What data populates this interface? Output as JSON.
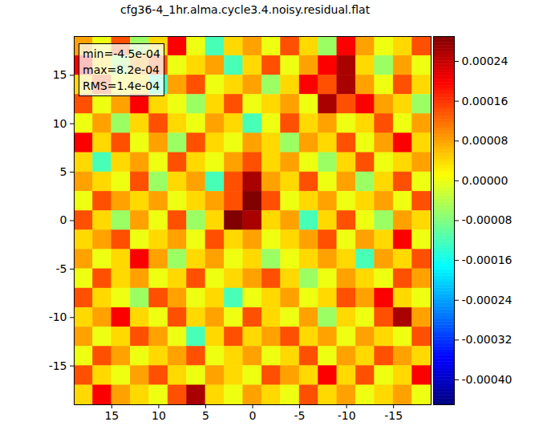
{
  "chart_data": {
    "type": "heatmap",
    "title": "cfg36-4_1hr.alma.cycle3.4.noisy.residual.flat",
    "annotations": [
      "min=-4.5e-04",
      "max=8.2e-04",
      "RMS=1.4e-04"
    ],
    "x": [
      18,
      16,
      14,
      12,
      10,
      8,
      6,
      4,
      2,
      0,
      -2,
      -4,
      -6,
      -8,
      -10,
      -12,
      -14,
      -16,
      -18
    ],
    "y": [
      18,
      16,
      14,
      12,
      10,
      8,
      6,
      4,
      2,
      0,
      -2,
      -4,
      -6,
      -8,
      -10,
      -12,
      -14,
      -16,
      -18
    ],
    "cells": [
      [
        8e-05,
        0,
        0.00014,
        -6e-05,
        4e-05,
        0.0002,
        0,
        -0.00012,
        4e-05,
        8e-05,
        0,
        0.00014,
        4e-05,
        -6e-05,
        0.0002,
        8e-05,
        0,
        4e-05,
        0.00014
      ],
      [
        0.0002,
        4e-05,
        -6e-05,
        8e-05,
        0.00014,
        0,
        4e-05,
        8e-05,
        -0.00012,
        4e-05,
        0.00014,
        0,
        8e-05,
        0.0002,
        0.00026,
        4e-05,
        -6e-05,
        8e-05,
        0
      ],
      [
        4e-05,
        0.00014,
        0,
        4e-05,
        -0.00012,
        8e-05,
        0.00014,
        0,
        4e-05,
        8e-05,
        -6e-05,
        4e-05,
        0.0002,
        0.00014,
        0.00026,
        8e-05,
        0,
        0.00014,
        4e-05
      ],
      [
        0.00014,
        0,
        8e-05,
        0.0002,
        4e-05,
        0,
        -6e-05,
        4e-05,
        0.00014,
        0,
        4e-05,
        8e-05,
        0,
        0.00026,
        0.00014,
        0.0002,
        8e-05,
        4e-05,
        -6e-05
      ],
      [
        0,
        8e-05,
        -6e-05,
        4e-05,
        0.00014,
        4e-05,
        0,
        8e-05,
        4e-05,
        -0.00012,
        0,
        0.00014,
        4e-05,
        8e-05,
        0,
        4e-05,
        0.00014,
        0,
        8e-05
      ],
      [
        0.0002,
        4e-05,
        0.00014,
        0,
        8e-05,
        -6e-05,
        0.00014,
        4e-05,
        0,
        8e-05,
        4e-05,
        -6e-05,
        8e-05,
        4e-05,
        0.00014,
        0,
        8e-05,
        0.0002,
        4e-05
      ],
      [
        4e-05,
        -0.00012,
        4e-05,
        8e-05,
        0,
        0.00014,
        4e-05,
        0,
        8e-05,
        0.00014,
        4e-05,
        8e-05,
        0,
        -6e-05,
        4e-05,
        0.00014,
        0,
        4e-05,
        8e-05
      ],
      [
        8e-05,
        4e-05,
        0,
        0.00014,
        -6e-05,
        4e-05,
        8e-05,
        -0.00012,
        0.00014,
        0.00026,
        8e-05,
        4e-05,
        0.00014,
        0,
        8e-05,
        -6e-05,
        4e-05,
        0.00014,
        0
      ],
      [
        0,
        0.00014,
        8e-05,
        4e-05,
        8e-05,
        0,
        4e-05,
        8e-05,
        0.00014,
        0.0003,
        0.00014,
        0,
        4e-05,
        8e-05,
        0,
        4e-05,
        8e-05,
        0,
        0.00014
      ],
      [
        0.00014,
        4e-05,
        -6e-05,
        8e-05,
        0,
        0.00014,
        -6e-05,
        4e-05,
        0.0003,
        0.00026,
        4e-05,
        8e-05,
        -0.00012,
        4e-05,
        0.00014,
        0,
        -6e-05,
        8e-05,
        4e-05
      ],
      [
        4e-05,
        8e-05,
        0.00014,
        0,
        4e-05,
        8e-05,
        0,
        0.00014,
        4e-05,
        8e-05,
        0,
        4e-05,
        8e-05,
        0.00014,
        0,
        8e-05,
        4e-05,
        0.0002,
        0
      ],
      [
        8e-05,
        0,
        4e-05,
        0.0002,
        8e-05,
        -6e-05,
        4e-05,
        8e-05,
        0,
        4e-05,
        -6e-05,
        0,
        4e-05,
        8e-05,
        4e-05,
        -0.00012,
        8e-05,
        4e-05,
        0.00014
      ],
      [
        0,
        0.00014,
        4e-05,
        8e-05,
        0,
        4e-05,
        0.00014,
        0,
        4e-05,
        8e-05,
        0.00014,
        4e-05,
        -6e-05,
        0,
        8e-05,
        4e-05,
        0,
        0.00014,
        8e-05
      ],
      [
        0.00014,
        4e-05,
        0,
        -6e-05,
        0.00014,
        8e-05,
        0,
        4e-05,
        -0.00012,
        0,
        4e-05,
        8e-05,
        0,
        4e-05,
        0.00014,
        8e-05,
        0.0002,
        4e-05,
        0
      ],
      [
        4e-05,
        8e-05,
        0.0002,
        4e-05,
        0,
        0.00014,
        4e-05,
        8e-05,
        0,
        0.00014,
        4e-05,
        0,
        8e-05,
        -6e-05,
        4e-05,
        0,
        0.00014,
        0.00026,
        8e-05
      ],
      [
        8e-05,
        0,
        4e-05,
        0.00014,
        8e-05,
        0,
        -0.00012,
        4e-05,
        0.00014,
        4e-05,
        8e-05,
        0.00014,
        4e-05,
        8e-05,
        0,
        8e-05,
        4e-05,
        0,
        0.00014
      ],
      [
        0,
        0.00014,
        8e-05,
        0,
        4e-05,
        8e-05,
        0.00014,
        0,
        4e-05,
        8e-05,
        0,
        4e-05,
        0.00014,
        0,
        8e-05,
        4e-05,
        0.00014,
        8e-05,
        4e-05
      ],
      [
        0.00014,
        4e-05,
        0,
        8e-05,
        0.00014,
        4e-05,
        0,
        8e-05,
        4e-05,
        0,
        0.00014,
        8e-05,
        4e-05,
        0.0002,
        4e-05,
        0.00014,
        0,
        4e-05,
        0.0002
      ],
      [
        4e-05,
        0.0002,
        8e-05,
        4e-05,
        0,
        0.00014,
        0.00026,
        4e-05,
        0,
        8e-05,
        4e-05,
        0,
        0.00014,
        4e-05,
        8e-05,
        0,
        4e-05,
        8e-05,
        0
      ]
    ],
    "xlim": [
      19,
      -19
    ],
    "xticks": [
      15,
      10,
      5,
      0,
      -5,
      -10,
      -15
    ],
    "ylim": [
      -19,
      19
    ],
    "yticks": [
      -15,
      -10,
      -5,
      0,
      5,
      10,
      15
    ],
    "color": "jet",
    "colorbar_lim": [
      -0.00045,
      0.00029
    ],
    "colorbar_ticks": [
      {
        "value": 0.00024,
        "label": "0.00024"
      },
      {
        "value": 0.00016,
        "label": "0.00016"
      },
      {
        "value": 8e-05,
        "label": "0.00008"
      },
      {
        "value": 0,
        "label": "0.00000"
      },
      {
        "value": -8e-05,
        "label": "-0.00008"
      },
      {
        "value": -0.00016,
        "label": "-0.00016"
      },
      {
        "value": -0.00024,
        "label": "-0.00024"
      },
      {
        "value": -0.00032,
        "label": "-0.00032"
      },
      {
        "value": -0.0004,
        "label": "-0.00040"
      }
    ]
  }
}
